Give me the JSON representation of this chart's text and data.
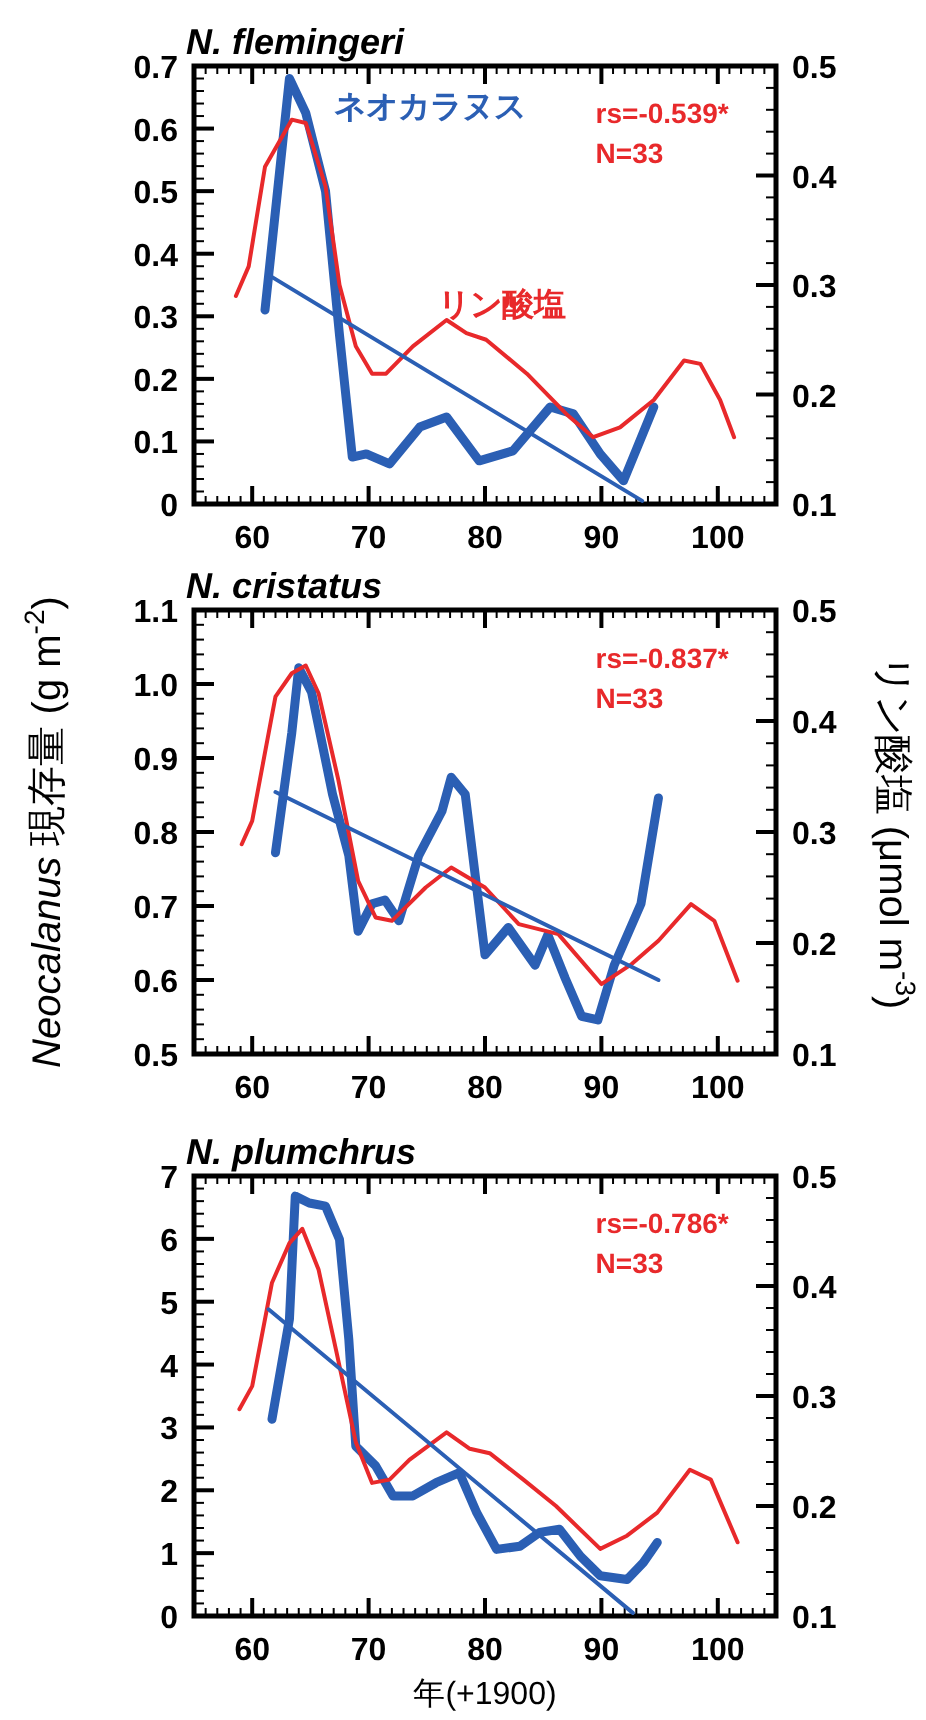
{
  "chart_data": [
    {
      "type": "line",
      "title": "*N. flemingeri*",
      "xlim": [
        55,
        105
      ],
      "xticks": [
        60,
        70,
        80,
        90,
        100
      ],
      "ylim": [
        0,
        0.7
      ],
      "yticks": [
        0,
        0.1,
        0.2,
        0.3,
        0.4,
        0.5,
        0.6,
        0.7
      ],
      "y2lim": [
        0.1,
        0.5
      ],
      "y2ticks": [
        0.1,
        0.2,
        0.3,
        0.4,
        0.5
      ],
      "annotations": [
        "rs=-0.539*",
        "N=33"
      ],
      "series": [
        {
          "name": "ネオカラヌス",
          "color": "#2b5fb4",
          "x": [
            61.1,
            63.2,
            64.6,
            66.3,
            67.5,
            68.6,
            69.8,
            71.8,
            74.4,
            76.7,
            79.5,
            82.4,
            85.6,
            87.6,
            89.9,
            91.9,
            94.5
          ],
          "values": [
            0.31,
            0.68,
            0.625,
            0.5,
            0.27,
            0.075,
            0.08,
            0.064,
            0.123,
            0.139,
            0.069,
            0.085,
            0.155,
            0.144,
            0.08,
            0.037,
            0.155
          ]
        },
        {
          "name": "リン酸塩",
          "color": "#e8292b",
          "axis": "y2",
          "x": [
            58.6,
            59.7,
            61.1,
            63.4,
            64.6,
            66.3,
            67.5,
            68.9,
            70.3,
            71.5,
            73.8,
            76.7,
            78.4,
            80.1,
            83.6,
            87.0,
            89.3,
            91.6,
            94.5,
            97.1,
            98.5,
            100.2,
            101.4
          ],
          "values": [
            0.29,
            0.317,
            0.408,
            0.451,
            0.448,
            0.39,
            0.3,
            0.244,
            0.219,
            0.219,
            0.244,
            0.268,
            0.256,
            0.25,
            0.219,
            0.182,
            0.161,
            0.17,
            0.195,
            0.231,
            0.228,
            0.195,
            0.161
          ]
        },
        {
          "color": "#2b5fb4",
          "x": [
            61.5,
            93.5
          ],
          "values": [
            0.365,
            0.005
          ]
        }
      ]
    },
    {
      "type": "line",
      "title": "*N. cristatus*",
      "ylabel": "*Neocalanus* 現存量 (g m$^{-2}$)",
      "y2label": "リン酸塩 (μmol m$^{-3}$)",
      "xlim": [
        55,
        105
      ],
      "xticks": [
        60,
        70,
        80,
        90,
        100
      ],
      "ylim": [
        0.5,
        1.1
      ],
      "yticks": [
        0.5,
        0.6,
        0.7,
        0.8,
        0.9,
        {
          "value": 1,
          "label": "1.0"
        },
        1.1
      ],
      "y2lim": [
        0.1,
        0.5
      ],
      "y2ticks": [
        0.1,
        0.2,
        0.3,
        0.4,
        0.5
      ],
      "annotations": [
        "rs=-0.837*",
        "N=33"
      ],
      "series": [
        {
          "color": "#2b5fb4",
          "x": [
            62,
            63.4,
            64,
            65.1,
            66.9,
            68.3,
            69.1,
            70.3,
            71.4,
            72.6,
            74.3,
            76.3,
            77.1,
            78.3,
            80,
            82,
            84.3,
            85.4,
            86.9,
            88.3,
            89.7,
            91.1,
            93.4,
            94.9
          ],
          "values": [
            0.772,
            0.934,
            1.022,
            0.989,
            0.851,
            0.768,
            0.666,
            0.703,
            0.708,
            0.68,
            0.768,
            0.828,
            0.874,
            0.851,
            0.634,
            0.671,
            0.62,
            0.661,
            0.602,
            0.551,
            0.546,
            0.62,
            0.703,
            0.846
          ]
        },
        {
          "color": "#e8292b",
          "axis": "y2",
          "x": [
            59.1,
            60,
            62,
            63.4,
            64.6,
            65.7,
            67.4,
            69.1,
            70.6,
            72,
            74.9,
            77.1,
            80,
            82.9,
            86.3,
            90,
            92.6,
            94.9,
            97.7,
            99.7,
            101.7
          ],
          "values": [
            0.289,
            0.31,
            0.422,
            0.443,
            0.45,
            0.425,
            0.347,
            0.256,
            0.223,
            0.22,
            0.25,
            0.268,
            0.25,
            0.217,
            0.208,
            0.163,
            0.181,
            0.202,
            0.235,
            0.22,
            0.166
          ]
        },
        {
          "color": "#2b5fb4",
          "x": [
            62,
            94.9
          ],
          "values": [
            0.854,
            0.6
          ]
        }
      ]
    },
    {
      "type": "line",
      "title": "*N. plumchrus*",
      "xlabel": "年(+1900)",
      "xlim": [
        55,
        105
      ],
      "xticks": [
        60,
        70,
        80,
        90,
        100
      ],
      "ylim": [
        0,
        7
      ],
      "yticks": [
        0,
        1,
        2,
        3,
        4,
        5,
        6,
        7
      ],
      "y2lim": [
        0.1,
        0.5
      ],
      "y2ticks": [
        0.1,
        0.2,
        0.3,
        0.4,
        0.5
      ],
      "annotations": [
        "rs=-0.786*",
        "N=33"
      ],
      "series": [
        {
          "color": "#2b5fb4",
          "x": [
            61.7,
            63.2,
            63.7,
            64.9,
            66.3,
            67.5,
            68.3,
            68.9,
            70.6,
            72.1,
            73.8,
            75.8,
            77.8,
            79.3,
            81,
            83,
            84.7,
            86.4,
            88.2,
            89.9,
            92.2,
            93.6,
            94.8
          ],
          "values": [
            3.13,
            4.72,
            6.68,
            6.57,
            6.52,
            5.99,
            4.4,
            2.7,
            2.39,
            1.91,
            1.91,
            2.12,
            2.28,
            1.64,
            1.06,
            1.11,
            1.33,
            1.38,
            0.95,
            0.64,
            0.58,
            0.85,
            1.17
          ]
        },
        {
          "color": "#e8292b",
          "axis": "y2",
          "x": [
            58.9,
            60,
            61.7,
            63.2,
            64.3,
            65.7,
            67.2,
            68.9,
            70.3,
            71.8,
            73.5,
            76.7,
            78.7,
            80.4,
            83.3,
            86.1,
            89.9,
            92.2,
            94.8,
            97.6,
            99.4,
            101.7
          ],
          "values": [
            0.288,
            0.309,
            0.403,
            0.439,
            0.452,
            0.415,
            0.342,
            0.258,
            0.221,
            0.224,
            0.242,
            0.267,
            0.252,
            0.248,
            0.224,
            0.2,
            0.161,
            0.173,
            0.194,
            0.233,
            0.224,
            0.167
          ]
        },
        {
          "color": "#2b5fb4",
          "x": [
            61.4,
            92.7
          ],
          "values": [
            4.88,
            0.05
          ]
        }
      ]
    }
  ]
}
